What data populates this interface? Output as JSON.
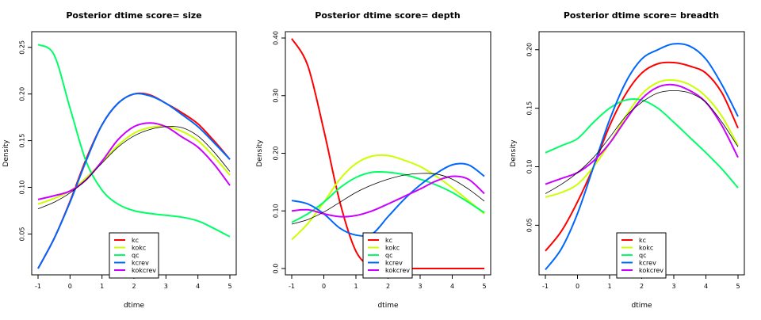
{
  "legend_entries": [
    {
      "name": "kc",
      "color": "#ff0000"
    },
    {
      "name": "kokc",
      "color": "#ccff00"
    },
    {
      "name": "qc",
      "color": "#00ff66"
    },
    {
      "name": "kcrev",
      "color": "#0066ff"
    },
    {
      "name": "kokcrev",
      "color": "#cc00ff"
    }
  ],
  "chart_data": [
    {
      "type": "line",
      "title": "Posterior dtime  score= size",
      "xlabel": "dtime",
      "ylabel": "Density",
      "xlim": [
        -1,
        5
      ],
      "ylim": [
        0.013,
        0.26
      ],
      "x_ticks": [
        -1,
        0,
        1,
        2,
        3,
        4,
        5
      ],
      "y_ticks": [
        0.05,
        0.1,
        0.15,
        0.2,
        0.25
      ],
      "legend_position": "bottom-center",
      "x": [
        -1,
        -0.5,
        0,
        0.5,
        1,
        1.5,
        2,
        2.5,
        3,
        3.5,
        4,
        4.5,
        5
      ],
      "series": [
        {
          "name": "kc",
          "color": "#ff0000",
          "width": 2,
          "values": [
            0.013,
            0.045,
            0.085,
            0.13,
            0.167,
            0.19,
            0.2,
            0.199,
            0.19,
            0.18,
            0.168,
            0.15,
            0.13
          ]
        },
        {
          "name": "kokc",
          "color": "#ccff00",
          "width": 2,
          "values": [
            0.082,
            0.088,
            0.096,
            0.11,
            0.127,
            0.145,
            0.158,
            0.164,
            0.165,
            0.16,
            0.15,
            0.133,
            0.113
          ]
        },
        {
          "name": "qc",
          "color": "#00ff66",
          "width": 2,
          "values": [
            0.253,
            0.242,
            0.185,
            0.128,
            0.097,
            0.082,
            0.075,
            0.072,
            0.07,
            0.068,
            0.064,
            0.056,
            0.047
          ]
        },
        {
          "name": "kcrev",
          "color": "#0066ff",
          "width": 2,
          "values": [
            0.013,
            0.045,
            0.084,
            0.128,
            0.167,
            0.19,
            0.2,
            0.198,
            0.19,
            0.178,
            0.165,
            0.148,
            0.13
          ]
        },
        {
          "name": "kokcrev",
          "color": "#cc00ff",
          "width": 2,
          "values": [
            0.087,
            0.091,
            0.096,
            0.108,
            0.128,
            0.151,
            0.165,
            0.169,
            0.165,
            0.154,
            0.143,
            0.125,
            0.102
          ]
        },
        {
          "name": "",
          "color": "#000000",
          "width": 0.8,
          "values": [
            0.077,
            0.084,
            0.094,
            0.108,
            0.126,
            0.143,
            0.155,
            0.162,
            0.165,
            0.164,
            0.155,
            0.138,
            0.117
          ]
        }
      ]
    },
    {
      "type": "line",
      "title": "Posterior dtime  score= depth",
      "xlabel": "dtime",
      "ylabel": "Density",
      "xlim": [
        -1,
        5
      ],
      "ylim": [
        0,
        0.4
      ],
      "x_ticks": [
        -1,
        0,
        1,
        2,
        3,
        4,
        5
      ],
      "y_ticks": [
        0,
        0.1,
        0.2,
        0.3,
        0.4
      ],
      "legend_position": "bottom-center",
      "x": [
        -1,
        -0.5,
        0,
        0.5,
        1,
        1.5,
        2,
        2.5,
        3,
        3.5,
        4,
        4.5,
        5
      ],
      "series": [
        {
          "name": "kc",
          "color": "#ff0000",
          "width": 2,
          "values": [
            0.399,
            0.352,
            0.24,
            0.115,
            0.03,
            0.003,
            0,
            0,
            0,
            0,
            0,
            0,
            0
          ]
        },
        {
          "name": "kokc",
          "color": "#ccff00",
          "width": 2,
          "values": [
            0.05,
            0.078,
            0.115,
            0.155,
            0.182,
            0.195,
            0.196,
            0.188,
            0.177,
            0.16,
            0.14,
            0.118,
            0.095
          ]
        },
        {
          "name": "qc",
          "color": "#00ff66",
          "width": 2,
          "values": [
            0.08,
            0.095,
            0.115,
            0.14,
            0.158,
            0.167,
            0.167,
            0.163,
            0.155,
            0.145,
            0.132,
            0.115,
            0.097
          ]
        },
        {
          "name": "kcrev",
          "color": "#0066ff",
          "width": 2,
          "values": [
            0.118,
            0.112,
            0.095,
            0.07,
            0.058,
            0.06,
            0.09,
            0.12,
            0.145,
            0.165,
            0.18,
            0.18,
            0.16
          ]
        },
        {
          "name": "kokcrev",
          "color": "#cc00ff",
          "width": 2,
          "values": [
            0.1,
            0.102,
            0.095,
            0.09,
            0.092,
            0.1,
            0.112,
            0.125,
            0.138,
            0.152,
            0.16,
            0.155,
            0.13
          ]
        },
        {
          "name": "",
          "color": "#000000",
          "width": 0.8,
          "values": [
            0.077,
            0.085,
            0.098,
            0.115,
            0.132,
            0.145,
            0.155,
            0.162,
            0.165,
            0.164,
            0.155,
            0.138,
            0.117
          ]
        }
      ]
    },
    {
      "type": "line",
      "title": "Posterior dtime  score= breadth",
      "xlabel": "dtime",
      "ylabel": "Density",
      "xlim": [
        -1,
        5
      ],
      "ylim": [
        0.013,
        0.21
      ],
      "x_ticks": [
        -1,
        0,
        1,
        2,
        3,
        4,
        5
      ],
      "y_ticks": [
        0.05,
        0.1,
        0.15,
        0.2
      ],
      "legend_position": "bottom-center",
      "x": [
        -1,
        -0.5,
        0,
        0.5,
        1,
        1.5,
        2,
        2.5,
        3,
        3.5,
        4,
        4.5,
        5
      ],
      "series": [
        {
          "name": "kc",
          "color": "#ff0000",
          "width": 2,
          "values": [
            0.028,
            0.045,
            0.07,
            0.1,
            0.135,
            0.162,
            0.18,
            0.188,
            0.189,
            0.186,
            0.18,
            0.163,
            0.133
          ]
        },
        {
          "name": "kokc",
          "color": "#ccff00",
          "width": 2,
          "values": [
            0.074,
            0.078,
            0.085,
            0.1,
            0.12,
            0.143,
            0.162,
            0.172,
            0.174,
            0.17,
            0.16,
            0.143,
            0.118
          ]
        },
        {
          "name": "qc",
          "color": "#00ff66",
          "width": 2,
          "values": [
            0.112,
            0.118,
            0.124,
            0.138,
            0.15,
            0.157,
            0.157,
            0.15,
            0.138,
            0.125,
            0.112,
            0.098,
            0.082
          ]
        },
        {
          "name": "kcrev",
          "color": "#0066ff",
          "width": 2,
          "values": [
            0.012,
            0.03,
            0.06,
            0.1,
            0.14,
            0.172,
            0.192,
            0.2,
            0.205,
            0.203,
            0.192,
            0.17,
            0.143
          ]
        },
        {
          "name": "kokcrev",
          "color": "#cc00ff",
          "width": 2,
          "values": [
            0.085,
            0.09,
            0.095,
            0.105,
            0.12,
            0.14,
            0.158,
            0.168,
            0.17,
            0.165,
            0.155,
            0.135,
            0.108
          ]
        },
        {
          "name": "",
          "color": "#000000",
          "width": 0.8,
          "values": [
            0.077,
            0.085,
            0.095,
            0.108,
            0.125,
            0.143,
            0.155,
            0.163,
            0.165,
            0.163,
            0.155,
            0.138,
            0.117
          ]
        }
      ]
    }
  ]
}
